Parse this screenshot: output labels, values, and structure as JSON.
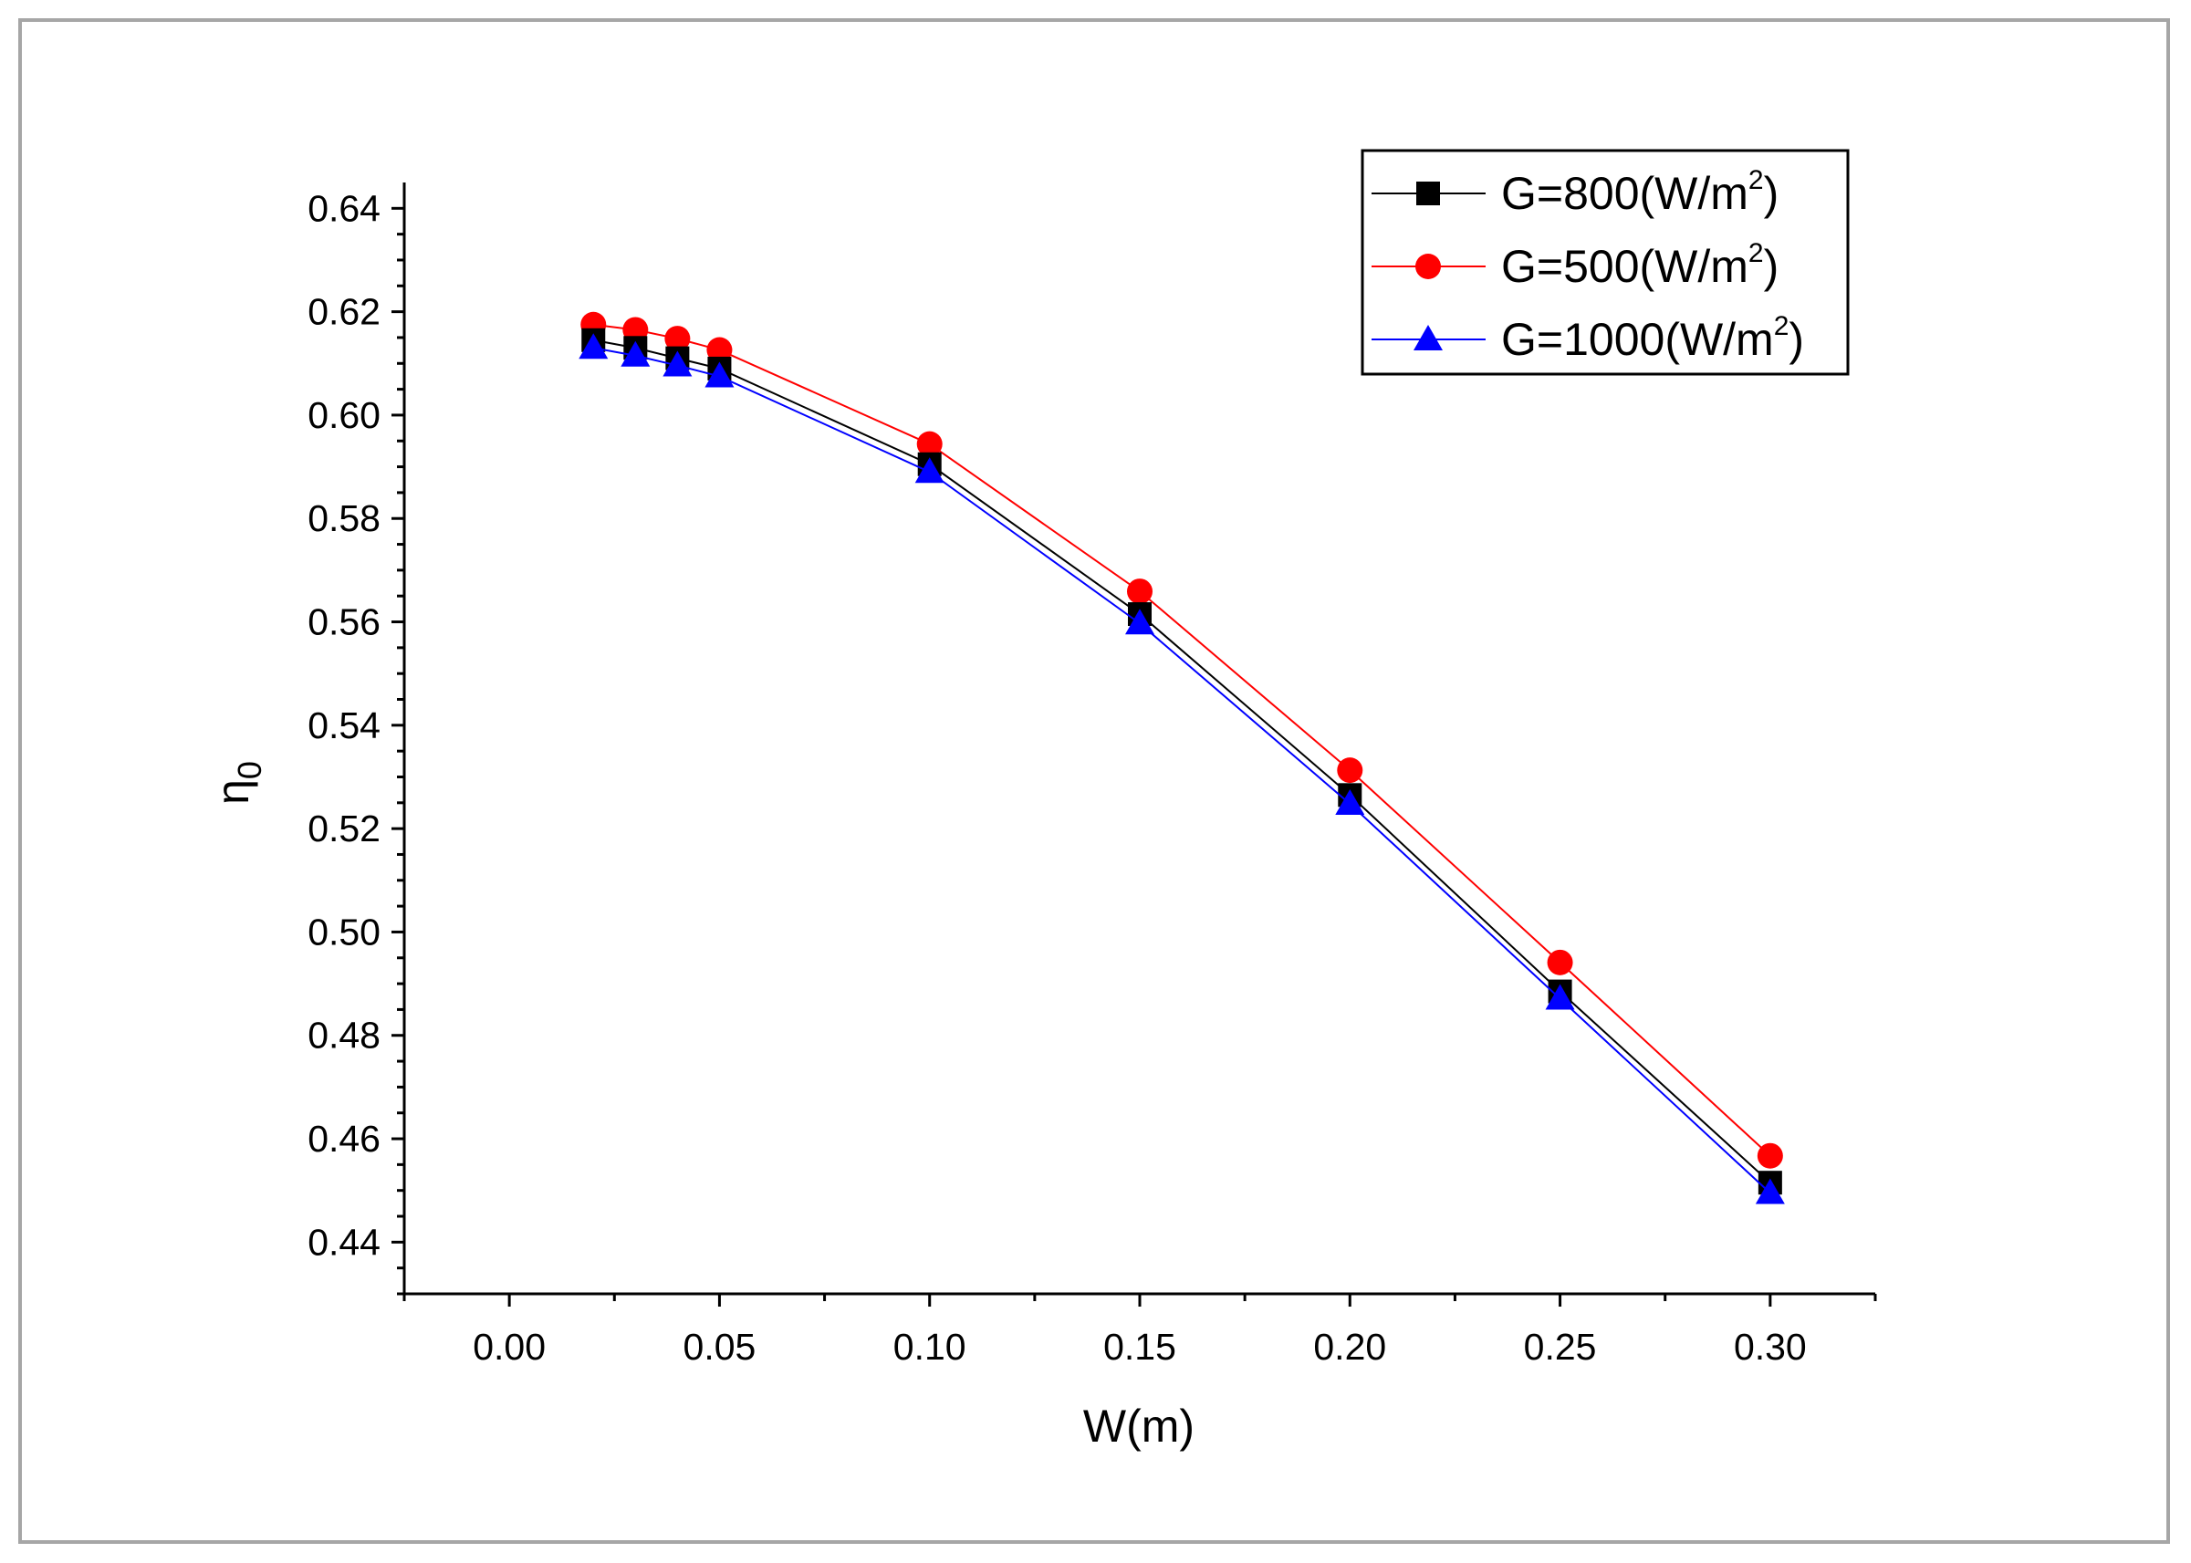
{
  "chart_data": {
    "type": "line",
    "title": "",
    "xlabel": "W(m)",
    "ylabel_main": "η",
    "ylabel_sub": "0",
    "xlim": [
      -0.025,
      0.325
    ],
    "ylim": [
      0.43,
      0.645
    ],
    "xticks": [
      0.0,
      0.05,
      0.1,
      0.15,
      0.2,
      0.25,
      0.3
    ],
    "xtick_labels": [
      "0.00",
      "0.05",
      "0.10",
      "0.15",
      "0.20",
      "0.25",
      "0.30"
    ],
    "yticks": [
      0.44,
      0.46,
      0.48,
      0.5,
      0.52,
      0.54,
      0.56,
      0.58,
      0.6,
      0.62,
      0.64
    ],
    "ytick_labels": [
      "0.44",
      "0.46",
      "0.48",
      "0.50",
      "0.52",
      "0.54",
      "0.56",
      "0.58",
      "0.60",
      "0.62",
      "0.64"
    ],
    "grid": false,
    "legend_position": "top-right",
    "x": [
      0.02,
      0.03,
      0.04,
      0.05,
      0.1,
      0.15,
      0.2,
      0.25,
      0.3
    ],
    "series": [
      {
        "name": "G=800(W/m2)",
        "label_prefix": "G=800(W/m",
        "label_sup": "2",
        "label_suffix": ")",
        "color": "#000000",
        "marker": "square",
        "values": [
          0.6145,
          0.613,
          0.611,
          0.609,
          0.5905,
          0.5615,
          0.5265,
          0.4885,
          0.4515
        ]
      },
      {
        "name": "G=500(W/m2)",
        "label_prefix": "G=500(W/m",
        "label_sup": "2",
        "label_suffix": ")",
        "color": "#ff0000",
        "marker": "circle",
        "values": [
          0.6175,
          0.6165,
          0.6148,
          0.6126,
          0.5944,
          0.5659,
          0.5313,
          0.4941,
          0.4567
        ]
      },
      {
        "name": "G=1000(W/m2)",
        "label_prefix": "G=1000(W/m",
        "label_sup": "2",
        "label_suffix": ")",
        "color": "#0000ff",
        "marker": "triangle",
        "values": [
          0.613,
          0.6115,
          0.6096,
          0.6075,
          0.589,
          0.5597,
          0.5248,
          0.4871,
          0.4495
        ]
      }
    ]
  }
}
